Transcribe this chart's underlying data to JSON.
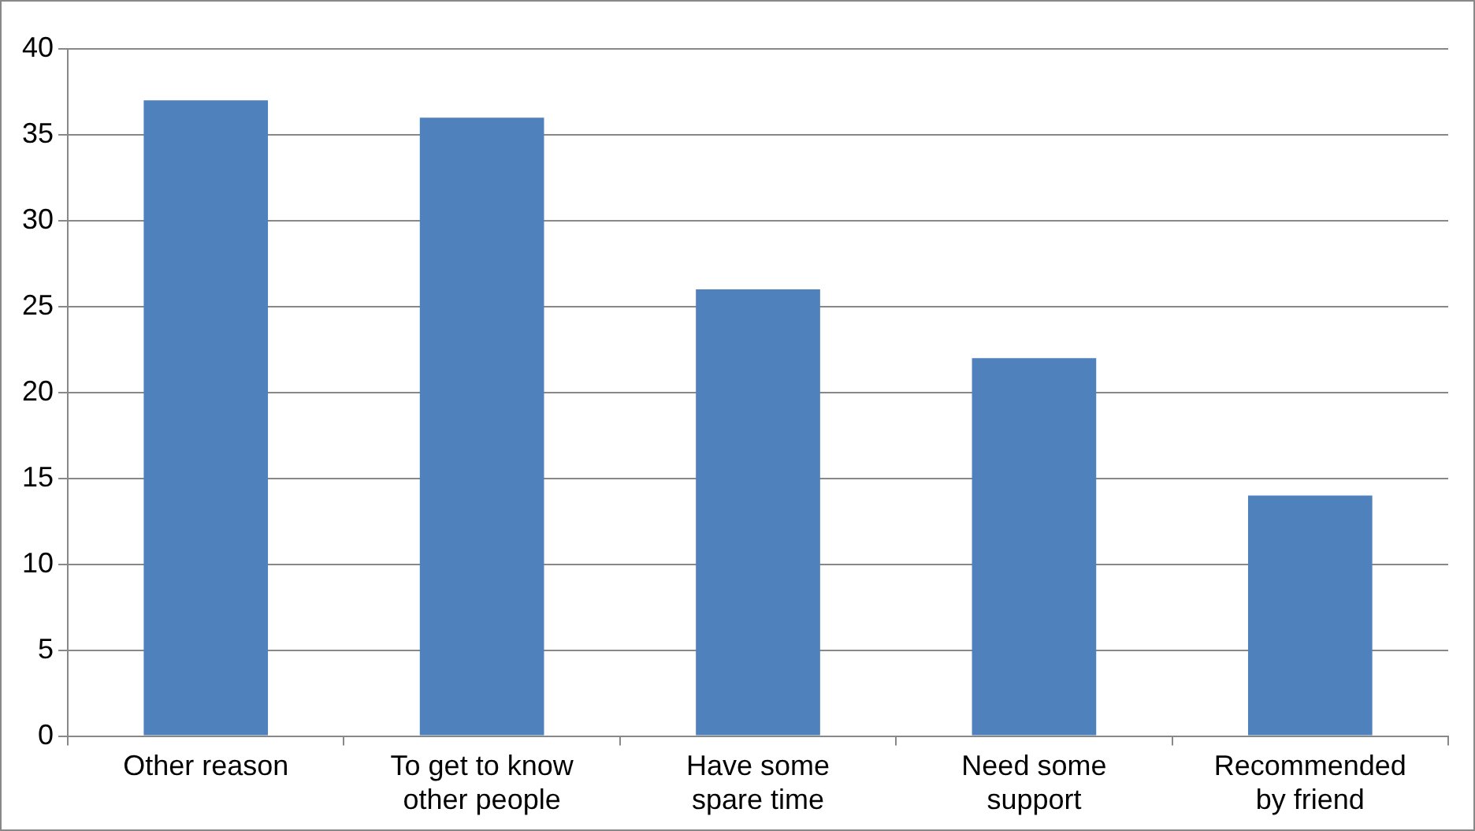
{
  "chart_data": {
    "type": "bar",
    "categories": [
      "Other reason",
      "To get to know other people",
      "Have some spare time",
      "Need some support",
      "Recommended by friend"
    ],
    "values": [
      37,
      36,
      26,
      22,
      14
    ],
    "color": "#4f81bd",
    "ylim": [
      0,
      40
    ],
    "yticks": [
      0,
      5,
      10,
      15,
      20,
      25,
      30,
      35,
      40
    ],
    "grid": "y"
  }
}
